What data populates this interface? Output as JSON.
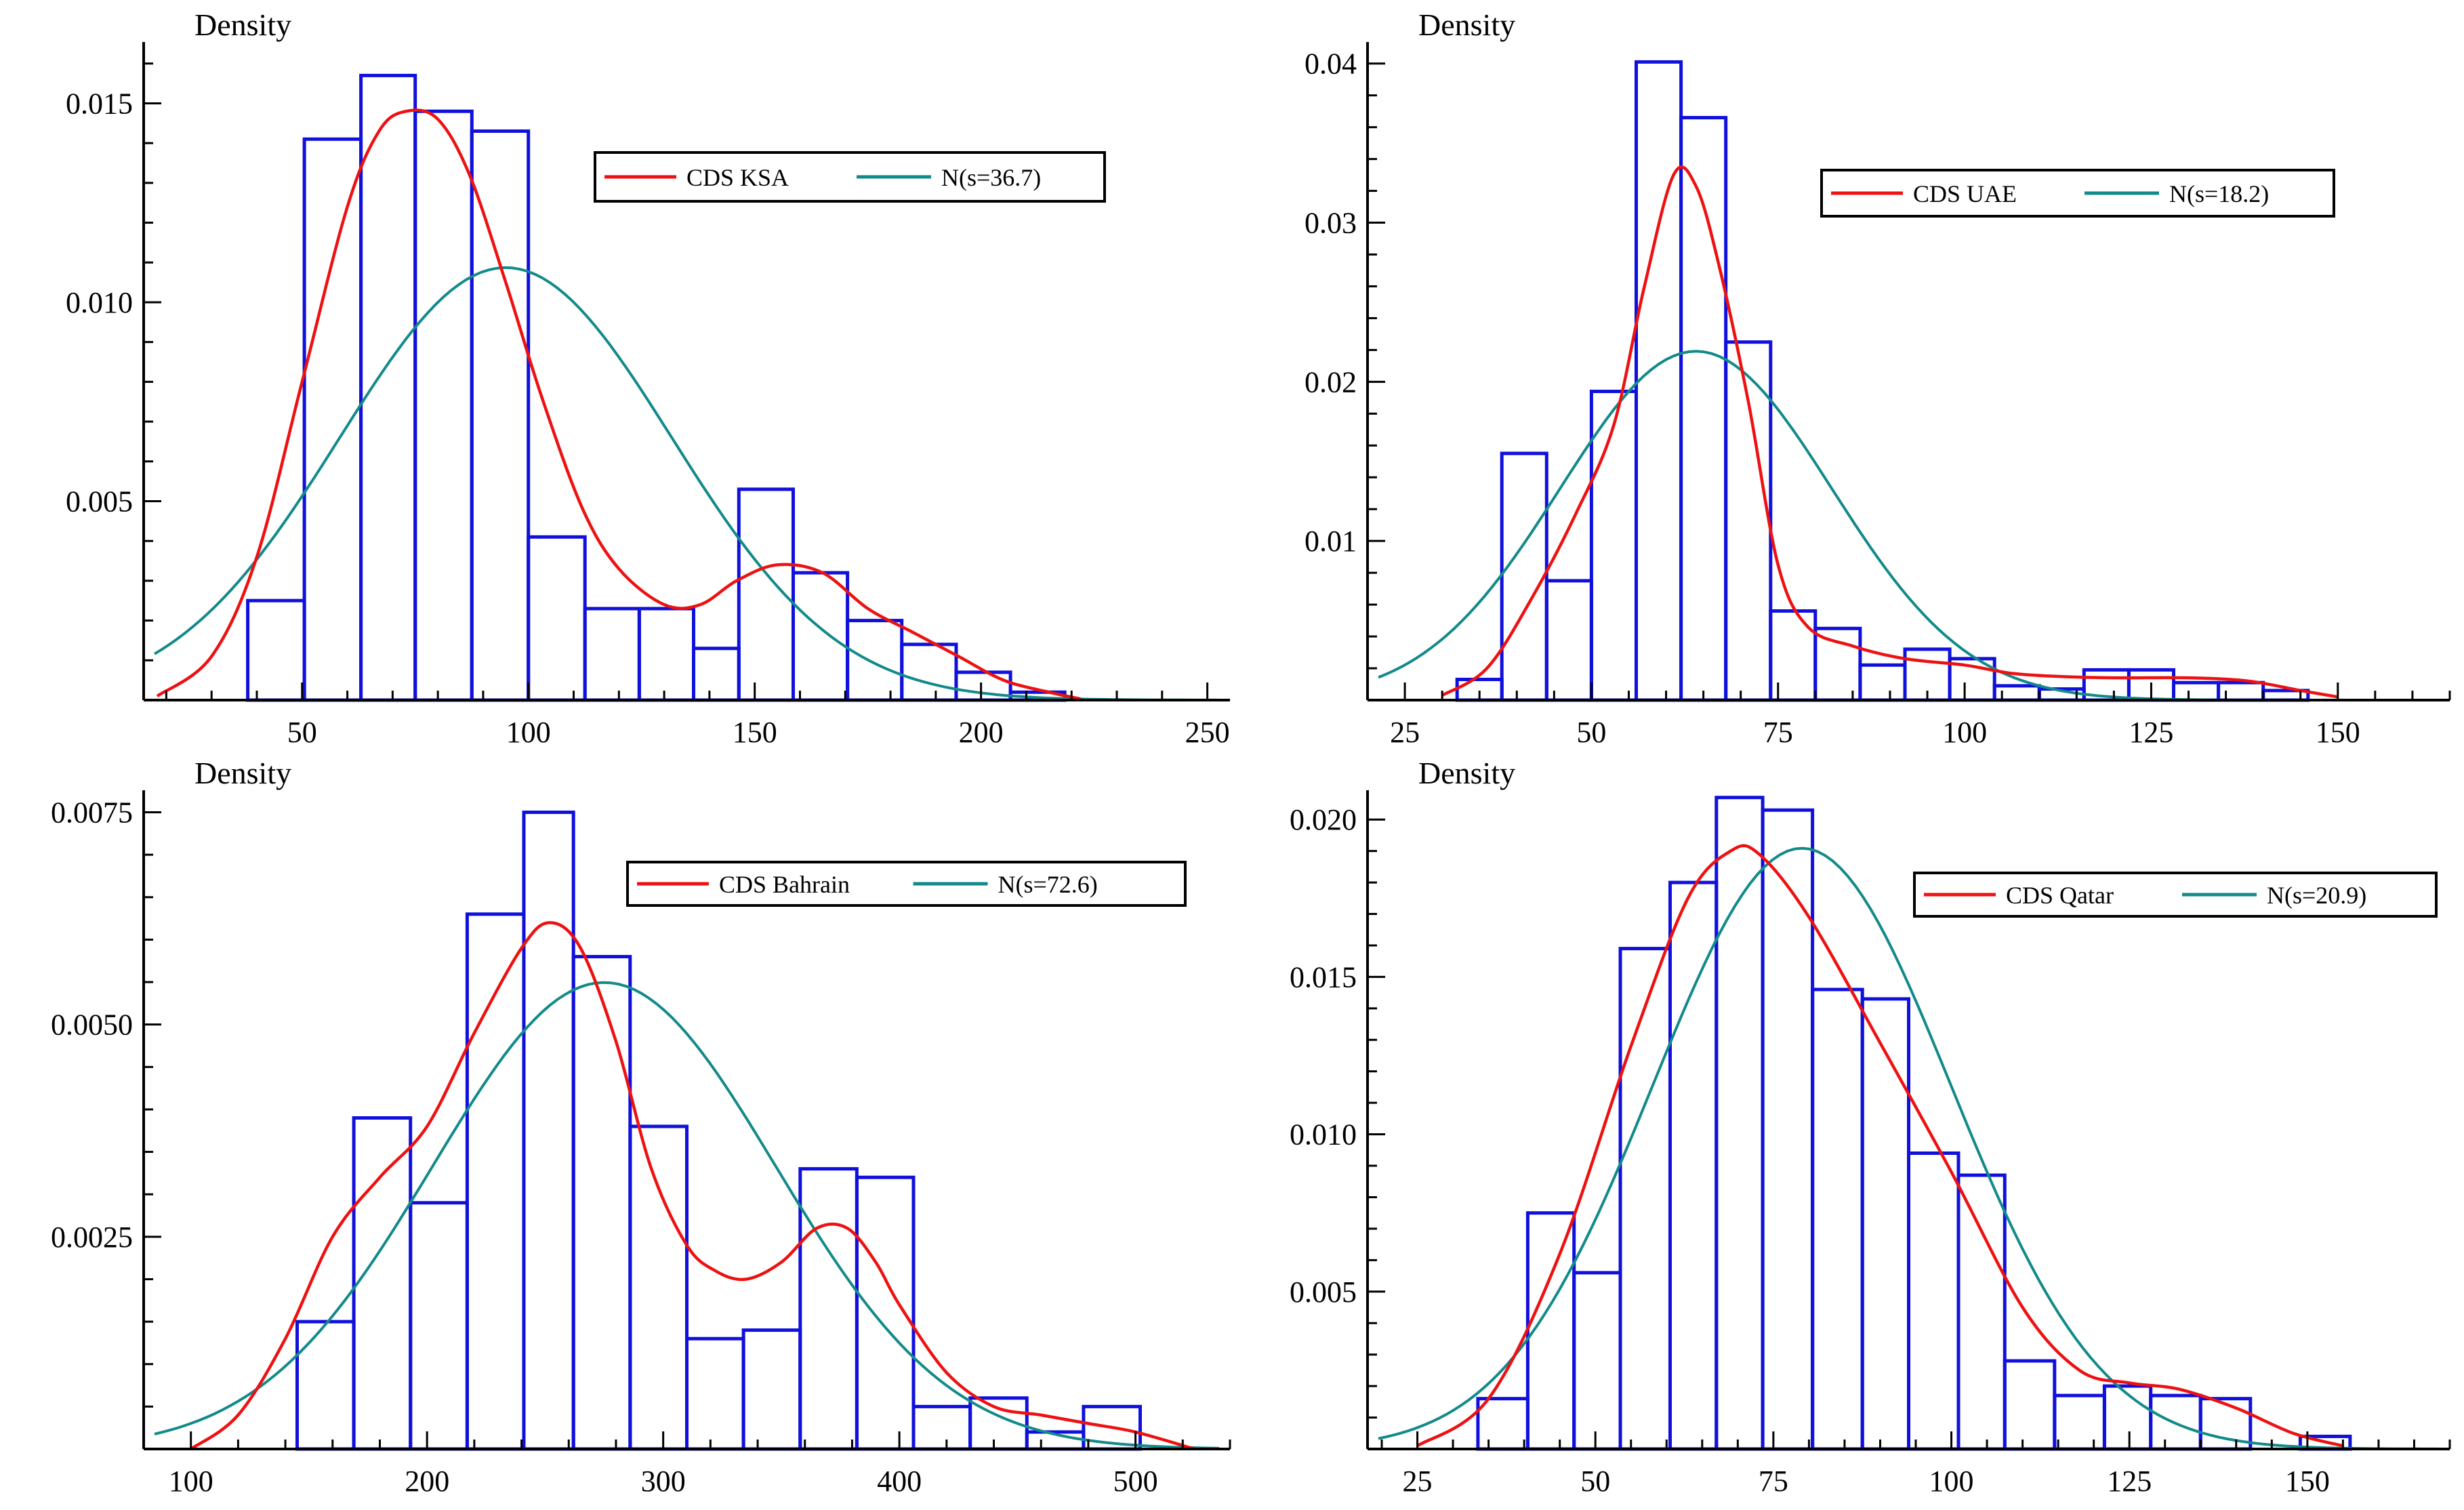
{
  "colors": {
    "hist": "#1010dd",
    "kde": "#ee1111",
    "normal": "#138a8a",
    "axis": "#000000"
  },
  "chart_data": [
    {
      "id": "ksa",
      "type": "histogram",
      "ylabel": "Density",
      "xlim": [
        15,
        255
      ],
      "ylim": [
        0,
        0.0162
      ],
      "xticks": [
        50,
        100,
        150,
        200,
        250
      ],
      "yticks": [
        0.005,
        0.01,
        0.015
      ],
      "ytick_labels": [
        "0.005",
        "0.010",
        "0.015"
      ],
      "legend": {
        "position": "top-right",
        "entries": [
          "CDS KSA",
          "N(s=36.7)"
        ]
      },
      "normal": {
        "mean": 95,
        "sd": 36.7
      },
      "bins": [
        [
          38,
          50.5,
          0.0025
        ],
        [
          50.5,
          63,
          0.0141
        ],
        [
          63,
          75,
          0.0157
        ],
        [
          75,
          87.5,
          0.0148
        ],
        [
          87.5,
          100,
          0.0143
        ],
        [
          100,
          112.5,
          0.0041
        ],
        [
          112.5,
          124.5,
          0.0023
        ],
        [
          124.5,
          136.5,
          0.0023
        ],
        [
          136.5,
          146.5,
          0.0013
        ],
        [
          146.5,
          158.5,
          0.0053
        ],
        [
          158.5,
          170.5,
          0.0032
        ],
        [
          170.5,
          182.5,
          0.002
        ],
        [
          182.5,
          194.5,
          0.0014
        ],
        [
          194.5,
          206.5,
          0.0007
        ],
        [
          206.5,
          218.5,
          0.0002
        ]
      ],
      "kde": [
        [
          18,
          0.0001
        ],
        [
          30,
          0.0011
        ],
        [
          40,
          0.0036
        ],
        [
          50,
          0.008
        ],
        [
          60,
          0.0124
        ],
        [
          67,
          0.0143
        ],
        [
          73,
          0.0148
        ],
        [
          80,
          0.0146
        ],
        [
          87,
          0.0132
        ],
        [
          95,
          0.0105
        ],
        [
          103,
          0.0076
        ],
        [
          112,
          0.0048
        ],
        [
          120,
          0.0033
        ],
        [
          130,
          0.0024
        ],
        [
          138,
          0.0024
        ],
        [
          146,
          0.003
        ],
        [
          155,
          0.0034
        ],
        [
          165,
          0.0032
        ],
        [
          175,
          0.0023
        ],
        [
          185,
          0.0017
        ],
        [
          195,
          0.0011
        ],
        [
          205,
          0.0005
        ],
        [
          215,
          0.0002
        ],
        [
          222,
          3e-05
        ]
      ]
    },
    {
      "id": "uae",
      "type": "histogram",
      "ylabel": "Density",
      "xlim": [
        20,
        165
      ],
      "ylim": [
        0,
        0.0405
      ],
      "xticks": [
        25,
        50,
        75,
        100,
        125,
        150
      ],
      "yticks": [
        0.01,
        0.02,
        0.03,
        0.04
      ],
      "ytick_labels": [
        "0.01",
        "0.02",
        "0.03",
        "0.04"
      ],
      "legend": {
        "position": "top-right",
        "entries": [
          "CDS UAE",
          "N(s=18.2)"
        ]
      },
      "normal": {
        "mean": 64,
        "sd": 18.2
      },
      "bins": [
        [
          32,
          38,
          0.0013
        ],
        [
          38,
          44,
          0.0155
        ],
        [
          44,
          50,
          0.0075
        ],
        [
          50,
          56,
          0.0194
        ],
        [
          56,
          62,
          0.0401
        ],
        [
          62,
          68,
          0.0366
        ],
        [
          68,
          74,
          0.0225
        ],
        [
          74,
          80,
          0.0056
        ],
        [
          80,
          86,
          0.0045
        ],
        [
          86,
          92,
          0.0022
        ],
        [
          92,
          98,
          0.0032
        ],
        [
          98,
          104,
          0.0026
        ],
        [
          104,
          110,
          0.0009
        ],
        [
          110,
          116,
          0.0007
        ],
        [
          116,
          122,
          0.0019
        ],
        [
          122,
          128,
          0.0019
        ],
        [
          128,
          134,
          0.0011
        ],
        [
          134,
          140,
          0.0011
        ],
        [
          140,
          146,
          0.0006
        ]
      ],
      "kde": [
        [
          30,
          0.0003
        ],
        [
          36,
          0.002
        ],
        [
          42,
          0.0064
        ],
        [
          48,
          0.0118
        ],
        [
          53,
          0.0173
        ],
        [
          57,
          0.0258
        ],
        [
          61,
          0.033
        ],
        [
          64,
          0.0323
        ],
        [
          67,
          0.0275
        ],
        [
          71,
          0.0188
        ],
        [
          75,
          0.0085
        ],
        [
          79,
          0.0046
        ],
        [
          85,
          0.0034
        ],
        [
          92,
          0.0026
        ],
        [
          100,
          0.0022
        ],
        [
          106,
          0.0017
        ],
        [
          112,
          0.0015
        ],
        [
          120,
          0.0014
        ],
        [
          130,
          0.0014
        ],
        [
          138,
          0.0012
        ],
        [
          145,
          0.0006
        ],
        [
          150,
          0.0002
        ]
      ]
    },
    {
      "id": "bahrain",
      "type": "histogram",
      "ylabel": "Density",
      "xlim": [
        80,
        540
      ],
      "ylim": [
        0,
        0.0076
      ],
      "xticks": [
        100,
        200,
        300,
        400,
        500
      ],
      "yticks": [
        0.0025,
        0.005,
        0.0075
      ],
      "ytick_labels": [
        "0.0025",
        "0.0050",
        "0.0075"
      ],
      "legend": {
        "position": "top-right",
        "entries": [
          "CDS Bahrain",
          "N(s=72.6)"
        ]
      },
      "normal": {
        "mean": 275,
        "sd": 72.6
      },
      "bins": [
        [
          145,
          169,
          0.0015
        ],
        [
          169,
          193,
          0.0039
        ],
        [
          193,
          217,
          0.0029
        ],
        [
          217,
          241,
          0.0063
        ],
        [
          241,
          262,
          0.0075
        ],
        [
          262,
          286,
          0.0058
        ],
        [
          286,
          310,
          0.0038
        ],
        [
          310,
          334,
          0.0013
        ],
        [
          334,
          358,
          0.0014
        ],
        [
          358,
          382,
          0.0033
        ],
        [
          382,
          406,
          0.0032
        ],
        [
          406,
          430,
          0.0005
        ],
        [
          430,
          454,
          0.0006
        ],
        [
          454,
          478,
          0.0002
        ],
        [
          478,
          502,
          0.0005
        ]
      ],
      "kde": [
        [
          100,
          0.0
        ],
        [
          120,
          0.0004
        ],
        [
          140,
          0.0013
        ],
        [
          160,
          0.0025
        ],
        [
          180,
          0.0032
        ],
        [
          200,
          0.0038
        ],
        [
          220,
          0.0049
        ],
        [
          240,
          0.0059
        ],
        [
          252,
          0.0062
        ],
        [
          265,
          0.0059
        ],
        [
          280,
          0.0048
        ],
        [
          295,
          0.0033
        ],
        [
          310,
          0.0024
        ],
        [
          322,
          0.0021
        ],
        [
          335,
          0.002
        ],
        [
          350,
          0.0022
        ],
        [
          365,
          0.0026
        ],
        [
          378,
          0.0026
        ],
        [
          390,
          0.0022
        ],
        [
          400,
          0.0017
        ],
        [
          420,
          0.0009
        ],
        [
          440,
          0.0005
        ],
        [
          460,
          0.0004
        ],
        [
          480,
          0.0003
        ],
        [
          500,
          0.0002
        ],
        [
          525,
          0.0
        ]
      ]
    },
    {
      "id": "qatar",
      "type": "histogram",
      "ylabel": "Density",
      "xlim": [
        18,
        170
      ],
      "ylim": [
        0,
        0.0205
      ],
      "xticks": [
        25,
        50,
        75,
        100,
        125,
        150
      ],
      "yticks": [
        0.005,
        0.01,
        0.015,
        0.02
      ],
      "ytick_labels": [
        "0.005",
        "0.010",
        "0.015",
        "0.020"
      ],
      "legend": {
        "position": "top-right",
        "entries": [
          "CDS Qatar",
          "N(s=20.9)"
        ]
      },
      "normal": {
        "mean": 79,
        "sd": 20.9
      },
      "bins": [
        [
          33.5,
          40.5,
          0.0016
        ],
        [
          40.5,
          47,
          0.0075
        ],
        [
          47,
          53.5,
          0.0056
        ],
        [
          53.5,
          60.5,
          0.0159
        ],
        [
          60.5,
          67,
          0.018
        ],
        [
          67,
          73.5,
          0.0207
        ],
        [
          73.5,
          80.5,
          0.0203
        ],
        [
          80.5,
          87.5,
          0.0146
        ],
        [
          87.5,
          94,
          0.0143
        ],
        [
          94,
          101,
          0.0094
        ],
        [
          101,
          107.5,
          0.0087
        ],
        [
          107.5,
          114.5,
          0.0028
        ],
        [
          114.5,
          121.5,
          0.0017
        ],
        [
          121.5,
          128,
          0.002
        ],
        [
          128,
          135,
          0.0017
        ],
        [
          135,
          142,
          0.0016
        ],
        [
          142,
          149,
          0.0
        ],
        [
          149,
          156,
          0.0004
        ]
      ],
      "kde": [
        [
          25,
          0.0001
        ],
        [
          35,
          0.0016
        ],
        [
          45,
          0.0062
        ],
        [
          55,
          0.0128
        ],
        [
          63,
          0.0175
        ],
        [
          69,
          0.019
        ],
        [
          73,
          0.0189
        ],
        [
          80,
          0.0169
        ],
        [
          90,
          0.0129
        ],
        [
          100,
          0.0088
        ],
        [
          110,
          0.0045
        ],
        [
          118,
          0.0025
        ],
        [
          125,
          0.0021
        ],
        [
          132,
          0.0019
        ],
        [
          140,
          0.0013
        ],
        [
          148,
          0.0005
        ],
        [
          155,
          0.0001
        ]
      ]
    }
  ]
}
